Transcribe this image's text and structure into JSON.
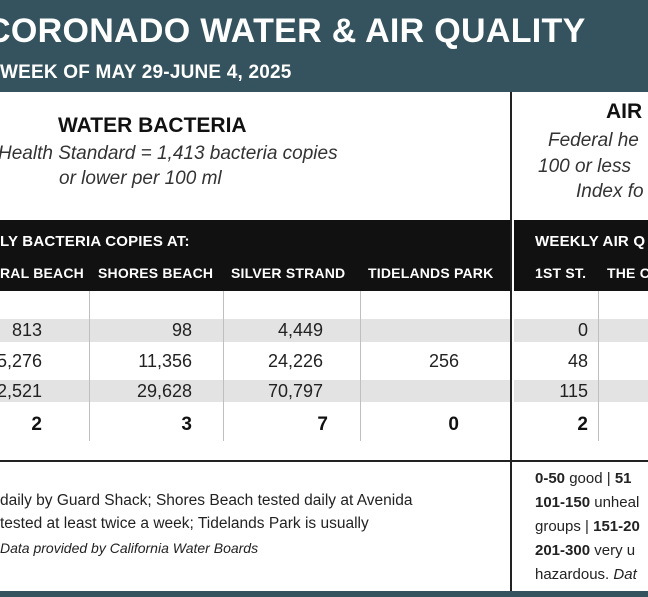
{
  "header": {
    "title": "CORONADO WATER & AIR QUALITY",
    "subtitle": "WEEK OF MAY 29-JUNE 4, 2025"
  },
  "water": {
    "heading": "WATER BACTERIA",
    "standard_line1": "Health Standard  = 1,413 bacteria copies",
    "standard_line2": "or lower per 100 ml",
    "bar_label": "LY BACTERIA COPIES AT:",
    "columns": [
      "RAL BEACH",
      "SHORES BEACH",
      "SILVER STRAND",
      "TIDELANDS PARK"
    ],
    "rows": [
      [
        "813",
        "98",
        "4,449",
        ""
      ],
      [
        "5,276",
        "11,356",
        "24,226",
        "256"
      ],
      [
        "2,521",
        "29,628",
        "70,797",
        ""
      ]
    ],
    "counts": [
      "2",
      "3",
      "7",
      "0"
    ],
    "footnote_line1": "daily by Guard Shack; Shores Beach tested daily at Avenida",
    "footnote_line2": "tested at least twice a week; Tidelands Park is usually",
    "footnote_source": "Data provided by California Water Boards"
  },
  "air": {
    "heading": "AIR",
    "standard_line1": "Federal he",
    "standard_line2": "100 or less",
    "standard_line3": "Index fo",
    "bar_label": "WEEKLY AIR Q",
    "columns": [
      "1ST ST.",
      "THE C"
    ],
    "rows": [
      "0",
      "48",
      "115"
    ],
    "count": "2",
    "legend": {
      "l1_bold": "0-50",
      "l1_text": " good | ",
      "l1_bold2": "51",
      "l2_bold": "101-150",
      "l2_text": " unheal",
      "l3_text": "groups | ",
      "l3_bold": "151-20",
      "l4_bold": "201-300",
      "l4_text": " very u",
      "l5_text": "hazardous. ",
      "l5_italic": "Dat"
    }
  }
}
